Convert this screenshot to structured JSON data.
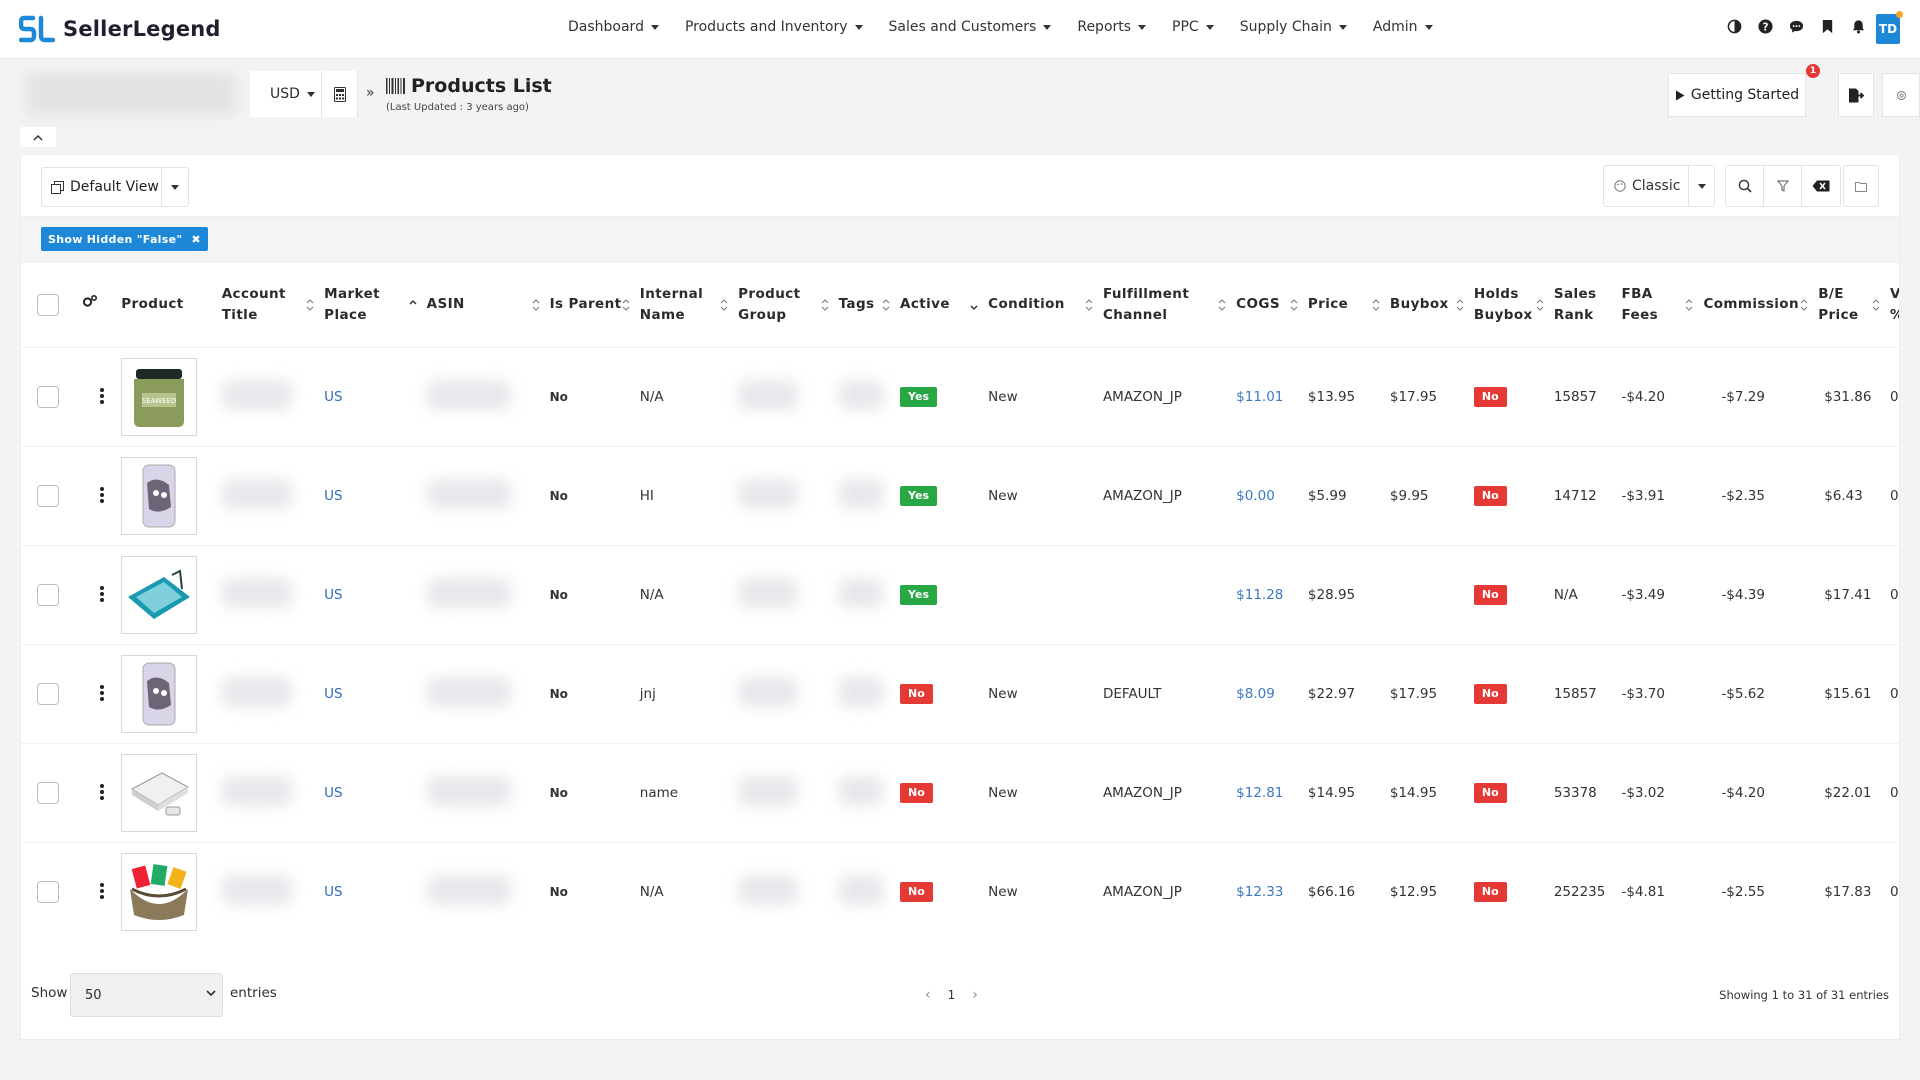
{
  "brand": {
    "name": "SellerLegend",
    "color": "#1e88d8"
  },
  "nav": {
    "menu": [
      {
        "label": "Dashboard"
      },
      {
        "label": "Products and Inventory"
      },
      {
        "label": "Sales and Customers"
      },
      {
        "label": "Reports"
      },
      {
        "label": "PPC"
      },
      {
        "label": "Supply Chain"
      },
      {
        "label": "Admin"
      }
    ],
    "icons": [
      "contrast-icon",
      "help-icon",
      "chat-icon",
      "bookmark-icon",
      "bell-icon"
    ],
    "avatar_initials": "TD"
  },
  "subheader": {
    "currency": "USD",
    "title": "Products List",
    "last_updated": "(Last Updated : 3 years ago)",
    "getting_started": "Getting Started",
    "getting_started_badge": "1"
  },
  "toolbar": {
    "view_label": "Default View",
    "mode_label": "Classic"
  },
  "filter_chip": "Show Hidden \"False\"",
  "table": {
    "columns": [
      "Product",
      "Account Title",
      "Market Place",
      "ASIN",
      "Is Parent",
      "Internal Name",
      "Product Group",
      "Tags",
      "Active",
      "Condition",
      "Fulfillment Channel",
      "COGS",
      "Price",
      "Buybox",
      "Holds Buybox",
      "Sales Rank",
      "FBA Fees",
      "Commission",
      "B/E Price",
      "V %"
    ],
    "rows": [
      {
        "image": "seaweed-jar",
        "marketplace": "US",
        "is_parent": "No",
        "internal_name": "N/A",
        "active": "Yes",
        "condition": "New",
        "fulfillment": "AMAZON_JP",
        "cogs": "$11.01",
        "price": "$13.95",
        "buybox": "$17.95",
        "holds_buybox": "No",
        "sales_rank": "15857",
        "fba_fees": "-$4.20",
        "commission": "-$7.29",
        "be_price": "$31.86",
        "v": "0"
      },
      {
        "image": "phone-case",
        "marketplace": "US",
        "is_parent": "No",
        "internal_name": "HI",
        "active": "Yes",
        "condition": "New",
        "fulfillment": "AMAZON_JP",
        "cogs": "$0.00",
        "price": "$5.99",
        "buybox": "$9.95",
        "holds_buybox": "No",
        "sales_rank": "14712",
        "fba_fees": "-$3.91",
        "commission": "-$2.35",
        "be_price": "$6.43",
        "v": "0"
      },
      {
        "image": "picnic-blanket",
        "marketplace": "US",
        "is_parent": "No",
        "internal_name": "N/A",
        "active": "Yes",
        "condition": "",
        "fulfillment": "",
        "cogs": "$11.28",
        "price": "$28.95",
        "buybox": "",
        "holds_buybox": "No",
        "sales_rank": "N/A",
        "fba_fees": "-$3.49",
        "commission": "-$4.39",
        "be_price": "$17.41",
        "v": "0"
      },
      {
        "image": "phone-case",
        "marketplace": "US",
        "is_parent": "No",
        "internal_name": "jnj",
        "active": "No",
        "condition": "New",
        "fulfillment": "DEFAULT",
        "cogs": "$8.09",
        "price": "$22.97",
        "buybox": "$17.95",
        "holds_buybox": "No",
        "sales_rank": "15857",
        "fba_fees": "-$3.70",
        "commission": "-$5.62",
        "be_price": "$15.61",
        "v": "0"
      },
      {
        "image": "power-bank",
        "marketplace": "US",
        "is_parent": "No",
        "internal_name": "name",
        "active": "No",
        "condition": "New",
        "fulfillment": "AMAZON_JP",
        "cogs": "$12.81",
        "price": "$14.95",
        "buybox": "$14.95",
        "holds_buybox": "No",
        "sales_rank": "53378",
        "fba_fees": "-$3.02",
        "commission": "-$4.20",
        "be_price": "$22.01",
        "v": "0"
      },
      {
        "image": "travel-pouch",
        "marketplace": "US",
        "is_parent": "No",
        "internal_name": "N/A",
        "active": "No",
        "condition": "New",
        "fulfillment": "AMAZON_JP",
        "cogs": "$12.33",
        "price": "$66.16",
        "buybox": "$12.95",
        "holds_buybox": "No",
        "sales_rank": "252235",
        "fba_fees": "-$4.81",
        "commission": "-$2.55",
        "be_price": "$17.83",
        "v": "0"
      }
    ]
  },
  "footer": {
    "show_label": "Show",
    "entries_value": "50",
    "entries_label": "entries",
    "page": "1",
    "showing": "Showing 1 to 31 of 31 entries"
  },
  "colors": {
    "accent": "#1e88d8",
    "yes": "#28a745",
    "no": "#e53935",
    "link": "#2f6db5"
  }
}
